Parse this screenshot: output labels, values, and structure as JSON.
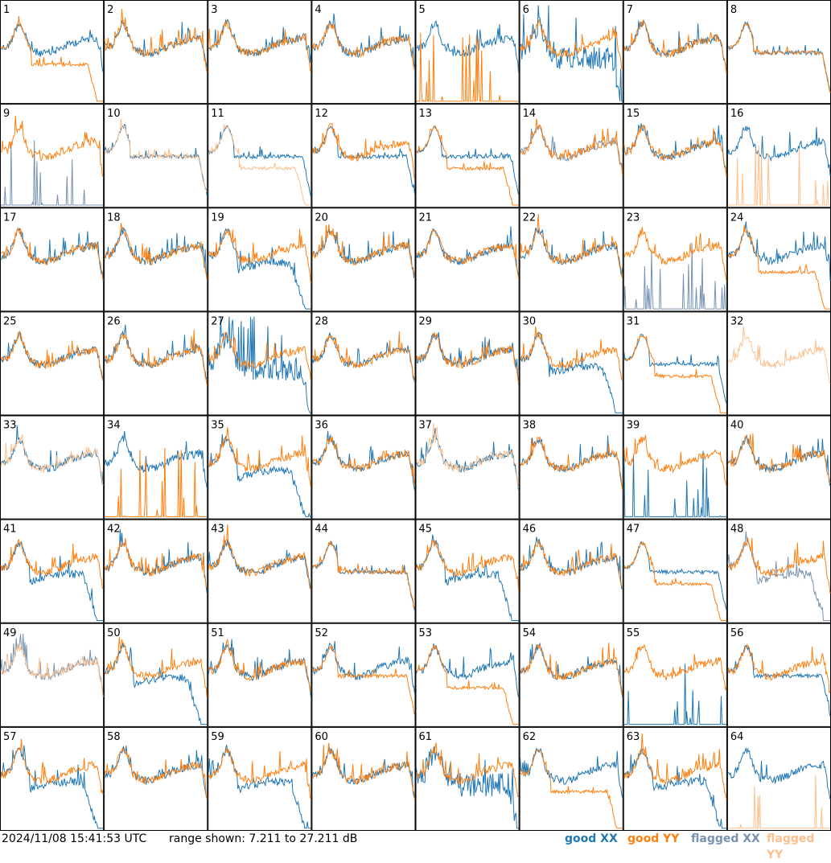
{
  "colors": {
    "good_xx": "#1f77b4",
    "good_yy": "#ff7f0e",
    "flagged_xx": "#7793b1",
    "flagged_yy": "#fdc08c",
    "background": "#ffffff",
    "border": "#000000"
  },
  "footer": {
    "timestamp": "2024/11/08 15:41:53 UTC",
    "range_text": "range shown: 7.211 to 27.211 dB",
    "legend": {
      "good_xx": "good XX",
      "good_yy": "good YY",
      "flagged_xx": "flagged XX",
      "flagged_yy": "flagged YY"
    }
  },
  "chart_data": {
    "type": "line",
    "layout": "8x8 small multiples",
    "y_range_db": [
      7.211,
      27.211
    ],
    "grid": false,
    "legend_placement": "bottom-right",
    "panels": [
      {
        "label": "1",
        "xx": "good",
        "yy": "good",
        "xx_shape": "normal",
        "yy_shape": "lowdrop"
      },
      {
        "label": "2",
        "xx": "good",
        "yy": "good",
        "xx_shape": "normal",
        "yy_shape": "normal"
      },
      {
        "label": "3",
        "xx": "good",
        "yy": "good",
        "xx_shape": "normal",
        "yy_shape": "normal"
      },
      {
        "label": "4",
        "xx": "good",
        "yy": "good",
        "xx_shape": "normal",
        "yy_shape": "normal"
      },
      {
        "label": "5",
        "xx": "good",
        "yy": "good",
        "xx_shape": "normal",
        "yy_shape": "spikes"
      },
      {
        "label": "6",
        "xx": "good",
        "yy": "good",
        "xx_shape": "noisy_drop",
        "yy_shape": "normal"
      },
      {
        "label": "7",
        "xx": "good",
        "yy": "good",
        "xx_shape": "normal",
        "yy_shape": "normal"
      },
      {
        "label": "8",
        "xx": "good",
        "yy": "good",
        "xx_shape": "flat",
        "yy_shape": "flat"
      },
      {
        "label": "9",
        "xx": "flagged",
        "yy": "good",
        "xx_shape": "spikes",
        "yy_shape": "normal"
      },
      {
        "label": "10",
        "xx": "good",
        "yy": "flagged",
        "xx_shape": "flat",
        "yy_shape": "flat"
      },
      {
        "label": "11",
        "xx": "good",
        "yy": "flagged",
        "xx_shape": "flat",
        "yy_shape": "lowdrop"
      },
      {
        "label": "12",
        "xx": "good",
        "yy": "good",
        "xx_shape": "flat",
        "yy_shape": "normal"
      },
      {
        "label": "13",
        "xx": "good",
        "yy": "good",
        "xx_shape": "flat",
        "yy_shape": "lowdrop"
      },
      {
        "label": "14",
        "xx": "flagged",
        "yy": "good",
        "xx_shape": "normal",
        "yy_shape": "normal"
      },
      {
        "label": "15",
        "xx": "good",
        "yy": "good",
        "xx_shape": "normal",
        "yy_shape": "normal"
      },
      {
        "label": "16",
        "xx": "good",
        "yy": "flagged",
        "xx_shape": "normal",
        "yy_shape": "spikes"
      },
      {
        "label": "17",
        "xx": "good",
        "yy": "good",
        "xx_shape": "normal",
        "yy_shape": "normal"
      },
      {
        "label": "18",
        "xx": "good",
        "yy": "good",
        "xx_shape": "normal",
        "yy_shape": "normal"
      },
      {
        "label": "19",
        "xx": "good",
        "yy": "good",
        "xx_shape": "drop",
        "yy_shape": "normal"
      },
      {
        "label": "20",
        "xx": "good",
        "yy": "good",
        "xx_shape": "normal",
        "yy_shape": "normal"
      },
      {
        "label": "21",
        "xx": "good",
        "yy": "good",
        "xx_shape": "normal",
        "yy_shape": "normal"
      },
      {
        "label": "22",
        "xx": "good",
        "yy": "good",
        "xx_shape": "normal",
        "yy_shape": "normal"
      },
      {
        "label": "23",
        "xx": "flagged",
        "yy": "good",
        "xx_shape": "spikes",
        "yy_shape": "normal"
      },
      {
        "label": "24",
        "xx": "good",
        "yy": "good",
        "xx_shape": "normal",
        "yy_shape": "lowdrop"
      },
      {
        "label": "25",
        "xx": "good",
        "yy": "good",
        "xx_shape": "normal",
        "yy_shape": "normal"
      },
      {
        "label": "26",
        "xx": "good",
        "yy": "good",
        "xx_shape": "normal",
        "yy_shape": "normal"
      },
      {
        "label": "27",
        "xx": "good",
        "yy": "good",
        "xx_shape": "noisy_drop",
        "yy_shape": "normal"
      },
      {
        "label": "28",
        "xx": "good",
        "yy": "good",
        "xx_shape": "normal",
        "yy_shape": "normal"
      },
      {
        "label": "29",
        "xx": "good",
        "yy": "good",
        "xx_shape": "normal",
        "yy_shape": "normal"
      },
      {
        "label": "30",
        "xx": "good",
        "yy": "good",
        "xx_shape": "drop",
        "yy_shape": "normal"
      },
      {
        "label": "31",
        "xx": "good",
        "yy": "good",
        "xx_shape": "flat",
        "yy_shape": "lowdrop"
      },
      {
        "label": "32",
        "xx": "flagged",
        "yy": "flagged",
        "xx_shape": "none",
        "yy_shape": "normal"
      },
      {
        "label": "33",
        "xx": "good",
        "yy": "flagged",
        "xx_shape": "normal",
        "yy_shape": "normal"
      },
      {
        "label": "34",
        "xx": "good",
        "yy": "good",
        "xx_shape": "normal",
        "yy_shape": "spikes"
      },
      {
        "label": "35",
        "xx": "good",
        "yy": "good",
        "xx_shape": "drop",
        "yy_shape": "normal"
      },
      {
        "label": "36",
        "xx": "good",
        "yy": "good",
        "xx_shape": "normal",
        "yy_shape": "normal"
      },
      {
        "label": "37",
        "xx": "good",
        "yy": "flagged",
        "xx_shape": "normal",
        "yy_shape": "normal"
      },
      {
        "label": "38",
        "xx": "good",
        "yy": "good",
        "xx_shape": "normal",
        "yy_shape": "normal"
      },
      {
        "label": "39",
        "xx": "good",
        "yy": "good",
        "xx_shape": "spikes",
        "yy_shape": "normal"
      },
      {
        "label": "40",
        "xx": "good",
        "yy": "good",
        "xx_shape": "normal",
        "yy_shape": "normal"
      },
      {
        "label": "41",
        "xx": "good",
        "yy": "good",
        "xx_shape": "drop",
        "yy_shape": "normal"
      },
      {
        "label": "42",
        "xx": "good",
        "yy": "good",
        "xx_shape": "normal",
        "yy_shape": "normal"
      },
      {
        "label": "43",
        "xx": "good",
        "yy": "good",
        "xx_shape": "normal",
        "yy_shape": "normal"
      },
      {
        "label": "44",
        "xx": "good",
        "yy": "good",
        "xx_shape": "flat",
        "yy_shape": "flat"
      },
      {
        "label": "45",
        "xx": "good",
        "yy": "good",
        "xx_shape": "drop",
        "yy_shape": "normal"
      },
      {
        "label": "46",
        "xx": "good",
        "yy": "good",
        "xx_shape": "normal",
        "yy_shape": "normal"
      },
      {
        "label": "47",
        "xx": "good",
        "yy": "good",
        "xx_shape": "flat",
        "yy_shape": "lowdrop"
      },
      {
        "label": "48",
        "xx": "flagged",
        "yy": "good",
        "xx_shape": "drop",
        "yy_shape": "normal"
      },
      {
        "label": "49",
        "xx": "flagged",
        "yy": "flagged",
        "xx_shape": "normal",
        "yy_shape": "normal"
      },
      {
        "label": "50",
        "xx": "good",
        "yy": "good",
        "xx_shape": "drop",
        "yy_shape": "normal"
      },
      {
        "label": "51",
        "xx": "good",
        "yy": "good",
        "xx_shape": "normal",
        "yy_shape": "normal"
      },
      {
        "label": "52",
        "xx": "good",
        "yy": "good",
        "xx_shape": "normal",
        "yy_shape": "flat"
      },
      {
        "label": "53",
        "xx": "good",
        "yy": "good",
        "xx_shape": "normal",
        "yy_shape": "lowdrop"
      },
      {
        "label": "54",
        "xx": "good",
        "yy": "good",
        "xx_shape": "normal",
        "yy_shape": "normal"
      },
      {
        "label": "55",
        "xx": "good",
        "yy": "good",
        "xx_shape": "spikes",
        "yy_shape": "normal"
      },
      {
        "label": "56",
        "xx": "good",
        "yy": "good",
        "xx_shape": "flat",
        "yy_shape": "normal"
      },
      {
        "label": "57",
        "xx": "good",
        "yy": "good",
        "xx_shape": "drop",
        "yy_shape": "normal"
      },
      {
        "label": "58",
        "xx": "good",
        "yy": "good",
        "xx_shape": "normal",
        "yy_shape": "normal"
      },
      {
        "label": "59",
        "xx": "good",
        "yy": "good",
        "xx_shape": "drop",
        "yy_shape": "normal"
      },
      {
        "label": "60",
        "xx": "good",
        "yy": "good",
        "xx_shape": "normal",
        "yy_shape": "normal"
      },
      {
        "label": "61",
        "xx": "good",
        "yy": "good",
        "xx_shape": "noisy_drop",
        "yy_shape": "normal"
      },
      {
        "label": "62",
        "xx": "good",
        "yy": "good",
        "xx_shape": "normal",
        "yy_shape": "lowdrop"
      },
      {
        "label": "63",
        "xx": "good",
        "yy": "good",
        "xx_shape": "drop",
        "yy_shape": "normal"
      },
      {
        "label": "64",
        "xx": "good",
        "yy": "flagged",
        "xx_shape": "normal",
        "yy_shape": "spikes"
      }
    ]
  }
}
